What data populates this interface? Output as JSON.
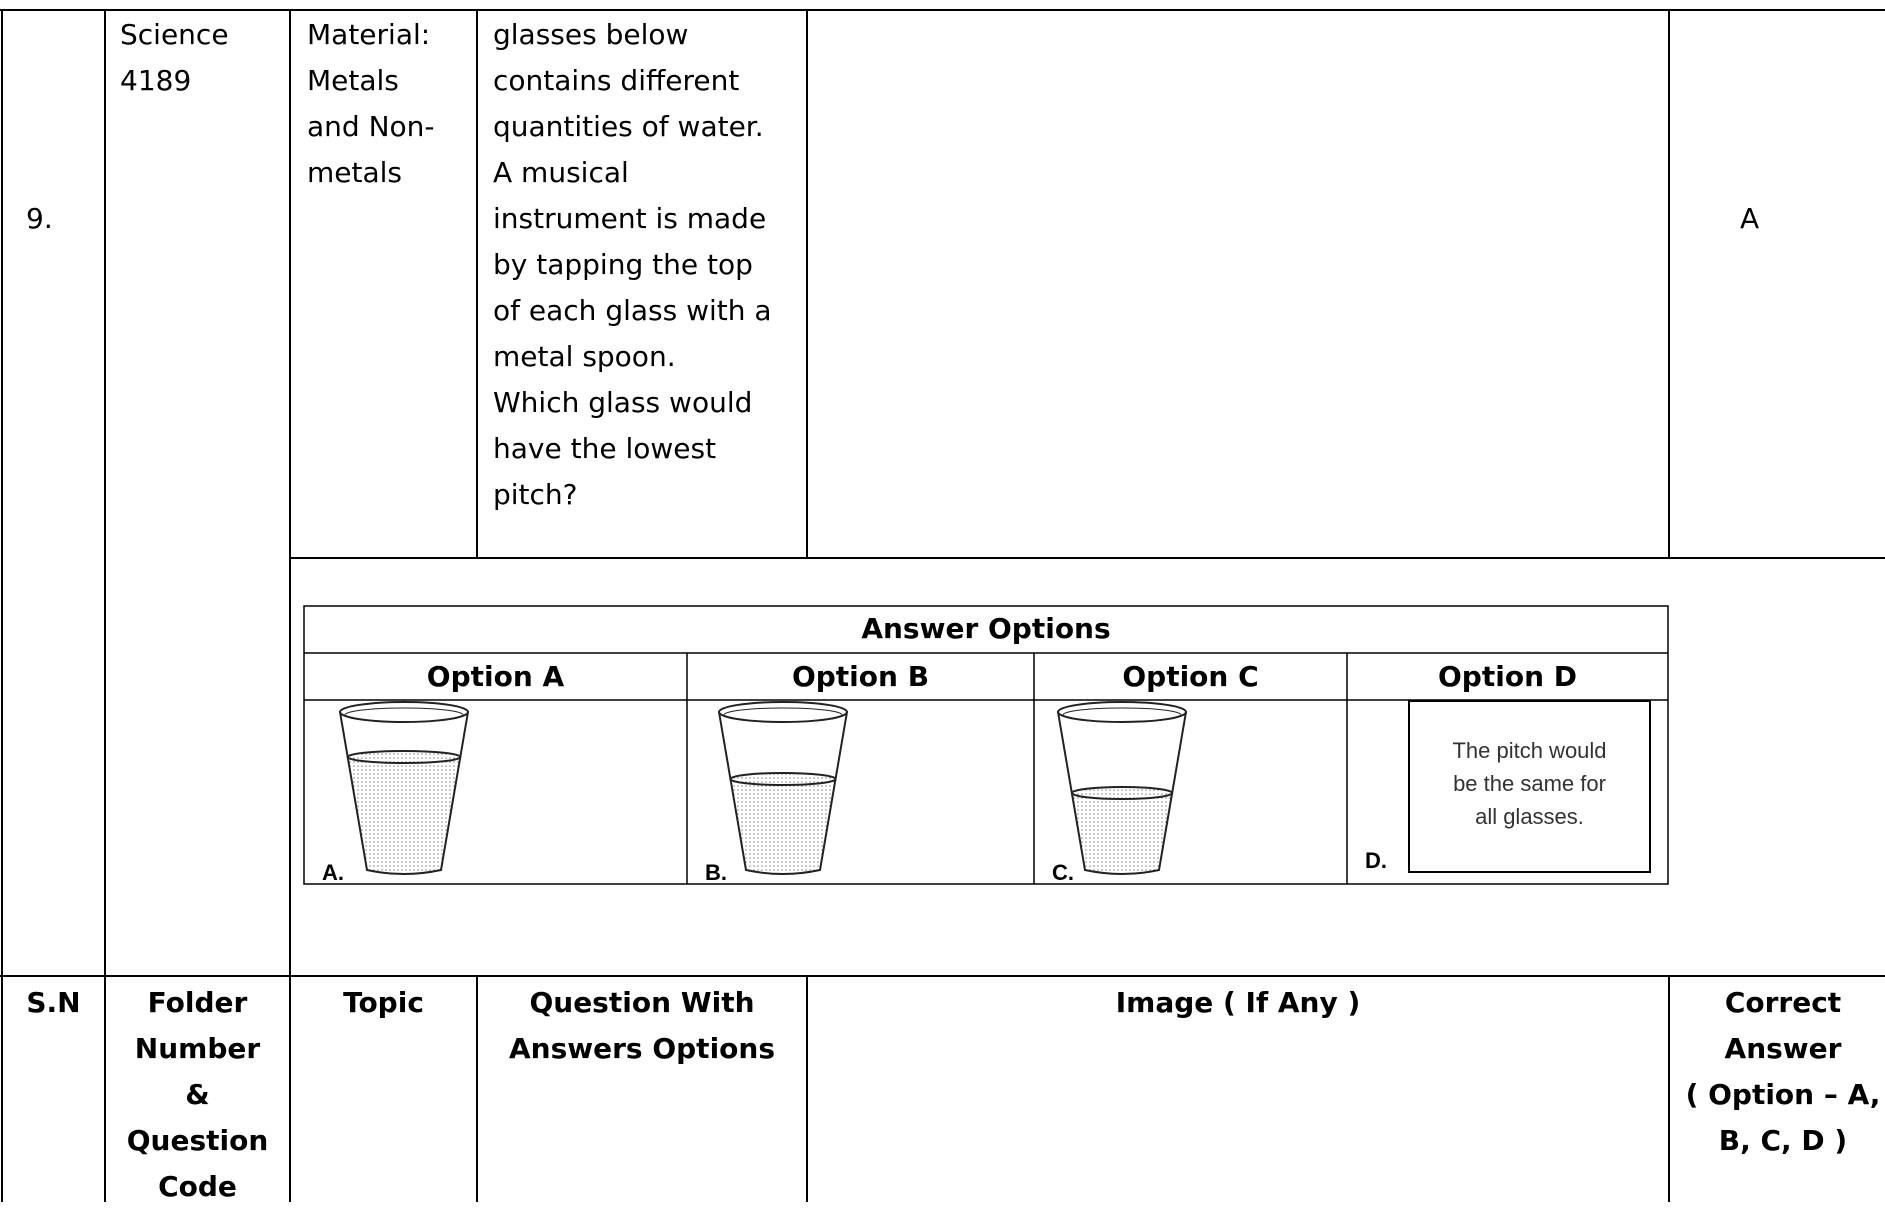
{
  "row": {
    "sn": "9.",
    "folder": [
      "Science",
      "4189"
    ],
    "topic": [
      "Material:",
      "Metals",
      "and Non-",
      "metals"
    ],
    "question": [
      "glasses below",
      "contains different",
      "quantities of water.",
      "A musical",
      "instrument is made",
      "by tapping the top",
      "of each glass with a",
      "metal spoon.",
      "Which glass would",
      "have the lowest",
      "pitch?"
    ],
    "answer": "A"
  },
  "answer_options": {
    "title": "Answer Options",
    "headers": [
      "Option A",
      "Option B",
      "Option C",
      "Option D"
    ],
    "labels": [
      "A.",
      "B.",
      "C.",
      "D."
    ],
    "option_d_text": [
      "The pitch would",
      "be the same for",
      "all glasses."
    ]
  },
  "header": {
    "sn": "S.N",
    "folder": [
      "Folder",
      "Number",
      "&",
      "Question",
      "Code"
    ],
    "topic": "Topic",
    "question": [
      "Question With",
      "Answers Options"
    ],
    "image": "Image ( If Any )",
    "correct": [
      "Correct",
      "Answer",
      "( Option – A,",
      "B, C, D )"
    ]
  }
}
